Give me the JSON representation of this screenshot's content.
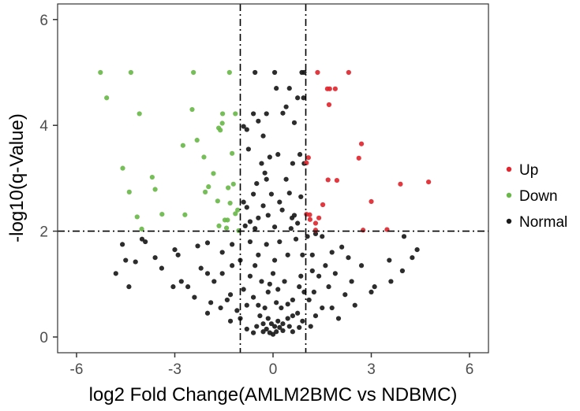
{
  "chart_data": {
    "type": "scatter",
    "title": "",
    "xlabel": "log2 Fold Change(AMLM2BMC vs NDBMC)",
    "ylabel": "-log10(q-Value)",
    "xlim": [
      -6.6,
      6.5
    ],
    "ylim": [
      -0.3,
      6.1
    ],
    "xticks": [
      -6,
      -3,
      0,
      3,
      6
    ],
    "xtick_labels": [
      "-6",
      "-3",
      "0",
      "3",
      "6"
    ],
    "yticks": [
      0,
      2,
      4,
      6
    ],
    "ytick_labels": [
      "0",
      "2",
      "4",
      "6"
    ],
    "grid": false,
    "legend_position": "right",
    "threshold_lines": {
      "vertical": [
        -1,
        1
      ],
      "horizontal": [
        2
      ],
      "style": "dotdash"
    },
    "series": [
      {
        "name": "Up",
        "color": "#e0272f",
        "points": [
          [
            1.36,
            5.0
          ],
          [
            2.31,
            5.0
          ],
          [
            1.66,
            4.69
          ],
          [
            1.73,
            4.69
          ],
          [
            1.9,
            4.69
          ],
          [
            1.71,
            4.39
          ],
          [
            2.7,
            3.65
          ],
          [
            1.08,
            3.39
          ],
          [
            2.62,
            3.38
          ],
          [
            1.02,
            3.29
          ],
          [
            1.68,
            2.97
          ],
          [
            1.95,
            2.96
          ],
          [
            3.89,
            2.89
          ],
          [
            4.75,
            2.93
          ],
          [
            3.0,
            2.56
          ],
          [
            1.52,
            2.5
          ],
          [
            1.02,
            2.32
          ],
          [
            1.12,
            2.31
          ],
          [
            1.13,
            2.22
          ],
          [
            1.4,
            2.25
          ],
          [
            1.3,
            2.15
          ],
          [
            1.3,
            2.02
          ],
          [
            2.75,
            2.02
          ],
          [
            3.48,
            2.03
          ]
        ]
      },
      {
        "name": "Down",
        "color": "#6ab84a",
        "points": [
          [
            -5.27,
            5.0
          ],
          [
            -4.34,
            5.0
          ],
          [
            -2.43,
            5.0
          ],
          [
            -1.33,
            5.0
          ],
          [
            -5.08,
            4.52
          ],
          [
            -4.08,
            4.22
          ],
          [
            -2.47,
            4.3
          ],
          [
            -1.54,
            4.22
          ],
          [
            -1.15,
            4.22
          ],
          [
            -1.55,
            4.04
          ],
          [
            -1.66,
            3.95
          ],
          [
            -1.61,
            3.91
          ],
          [
            -2.32,
            3.72
          ],
          [
            -2.75,
            3.62
          ],
          [
            -2.11,
            3.4
          ],
          [
            -1.25,
            3.47
          ],
          [
            -4.59,
            3.19
          ],
          [
            -1.82,
            3.09
          ],
          [
            -3.69,
            3.02
          ],
          [
            -1.97,
            2.84
          ],
          [
            -1.21,
            2.89
          ],
          [
            -1.37,
            2.82
          ],
          [
            -4.39,
            2.74
          ],
          [
            -3.6,
            2.79
          ],
          [
            -2.07,
            2.74
          ],
          [
            -1.69,
            2.57
          ],
          [
            -1.31,
            2.53
          ],
          [
            -1.08,
            2.4
          ],
          [
            -1.15,
            2.33
          ],
          [
            -3.39,
            2.32
          ],
          [
            -2.69,
            2.31
          ],
          [
            -4.15,
            2.27
          ],
          [
            -1.47,
            2.21
          ],
          [
            -1.39,
            2.21
          ],
          [
            -1.65,
            2.1
          ],
          [
            -1.42,
            2.06
          ],
          [
            -4.01,
            2.04
          ],
          [
            -1.05,
            2.01
          ]
        ]
      },
      {
        "name": "Normal",
        "color": "#1a1a1a",
        "points": [
          [
            -0.55,
            5.0
          ],
          [
            0.05,
            5.0
          ],
          [
            0.95,
            5.0
          ],
          [
            0.88,
            5.0
          ],
          [
            0.1,
            4.7
          ],
          [
            0.5,
            4.7
          ],
          [
            0.75,
            4.52
          ],
          [
            0.93,
            4.52
          ],
          [
            0.4,
            4.35
          ],
          [
            -0.2,
            4.22
          ],
          [
            -0.6,
            4.22
          ],
          [
            0.3,
            4.23
          ],
          [
            -0.45,
            4.08
          ],
          [
            0.65,
            4.05
          ],
          [
            -0.9,
            3.98
          ],
          [
            -0.8,
            3.92
          ],
          [
            -0.3,
            3.8
          ],
          [
            -0.75,
            3.55
          ],
          [
            -0.1,
            3.4
          ],
          [
            0.15,
            3.45
          ],
          [
            0.82,
            3.45
          ],
          [
            -0.35,
            3.28
          ],
          [
            0.95,
            3.28
          ],
          [
            0.6,
            3.28
          ],
          [
            -0.25,
            3.1
          ],
          [
            -0.2,
            2.98
          ],
          [
            0.4,
            2.98
          ],
          [
            -0.5,
            2.9
          ],
          [
            -0.6,
            2.7
          ],
          [
            -0.05,
            2.7
          ],
          [
            0.5,
            2.72
          ],
          [
            0.85,
            2.65
          ],
          [
            -0.9,
            2.55
          ],
          [
            -0.8,
            2.45
          ],
          [
            0.2,
            2.55
          ],
          [
            -0.3,
            2.48
          ],
          [
            0.28,
            2.4
          ],
          [
            0.65,
            2.3
          ],
          [
            0.58,
            2.25
          ],
          [
            -0.45,
            2.25
          ],
          [
            -0.15,
            2.3
          ],
          [
            -0.7,
            2.18
          ],
          [
            0.75,
            2.15
          ],
          [
            -0.85,
            2.1
          ],
          [
            0.05,
            2.08
          ],
          [
            -0.55,
            2.05
          ],
          [
            0.55,
            2.05
          ],
          [
            -4.0,
            1.85
          ],
          [
            -3.9,
            1.8
          ],
          [
            -4.2,
            1.42
          ],
          [
            -3.6,
            1.5
          ],
          [
            -3.0,
            1.65
          ],
          [
            -3.4,
            1.3
          ],
          [
            -3.05,
            0.95
          ],
          [
            -2.8,
            1.05
          ],
          [
            -4.6,
            1.75
          ],
          [
            -4.5,
            1.45
          ],
          [
            -2.9,
            1.55
          ],
          [
            -2.3,
            1.72
          ],
          [
            -2.0,
            1.78
          ],
          [
            -1.55,
            1.6
          ],
          [
            -1.25,
            1.75
          ],
          [
            -2.2,
            1.3
          ],
          [
            -2.0,
            1.2
          ],
          [
            -1.8,
            1.05
          ],
          [
            -1.55,
            1.2
          ],
          [
            -1.25,
            1.35
          ],
          [
            -1.0,
            1.45
          ],
          [
            -1.3,
            0.8
          ],
          [
            -4.8,
            1.2
          ],
          [
            -4.4,
            0.95
          ],
          [
            -2.6,
            0.95
          ],
          [
            -2.4,
            0.75
          ],
          [
            -1.9,
            0.65
          ],
          [
            -1.6,
            0.55
          ],
          [
            -1.4,
            0.7
          ],
          [
            -1.1,
            0.5
          ],
          [
            -2.0,
            0.45
          ],
          [
            -1.3,
            0.3
          ],
          [
            -1.0,
            0.35
          ],
          [
            -0.8,
            0.6
          ],
          [
            -0.9,
            0.9
          ],
          [
            -0.7,
            1.15
          ],
          [
            -0.55,
            1.35
          ],
          [
            -0.4,
            0.4
          ],
          [
            -0.3,
            0.25
          ],
          [
            -0.2,
            0.15
          ],
          [
            -0.1,
            0.08
          ],
          [
            0.0,
            0.05
          ],
          [
            0.1,
            0.1
          ],
          [
            0.2,
            0.18
          ],
          [
            0.3,
            0.25
          ],
          [
            0.45,
            0.35
          ],
          [
            0.6,
            0.4
          ],
          [
            0.75,
            0.45
          ],
          [
            0.9,
            0.3
          ],
          [
            -0.5,
            0.2
          ],
          [
            0.5,
            0.2
          ],
          [
            -0.25,
            0.55
          ],
          [
            0.25,
            0.55
          ],
          [
            -0.6,
            0.75
          ],
          [
            0.6,
            0.7
          ],
          [
            -0.15,
            0.85
          ],
          [
            0.15,
            0.9
          ],
          [
            -0.35,
            1.05
          ],
          [
            0.35,
            1.05
          ],
          [
            0.0,
            1.2
          ],
          [
            -0.45,
            1.55
          ],
          [
            0.45,
            1.55
          ],
          [
            -0.2,
            1.75
          ],
          [
            0.2,
            1.8
          ],
          [
            0.05,
            1.45
          ],
          [
            -0.7,
            1.8
          ],
          [
            0.7,
            1.85
          ],
          [
            0.9,
            1.55
          ],
          [
            0.85,
            1.15
          ],
          [
            0.95,
            0.85
          ],
          [
            0.8,
            0.95
          ],
          [
            -0.15,
            0.35
          ],
          [
            0.15,
            0.3
          ],
          [
            -0.05,
            0.25
          ],
          [
            0.05,
            0.2
          ],
          [
            -0.3,
            0.1
          ],
          [
            0.3,
            0.12
          ],
          [
            -0.6,
            0.08
          ],
          [
            0.6,
            0.1
          ],
          [
            -0.8,
            0.15
          ],
          [
            0.8,
            0.18
          ],
          [
            -0.45,
            0.6
          ],
          [
            0.45,
            0.62
          ],
          [
            -0.1,
            1.0
          ],
          [
            0.1,
            0.65
          ],
          [
            1.2,
            1.55
          ],
          [
            1.3,
            1.95
          ],
          [
            1.5,
            1.9
          ],
          [
            1.6,
            1.35
          ],
          [
            1.8,
            1.6
          ],
          [
            2.1,
            1.7
          ],
          [
            2.3,
            1.5
          ],
          [
            2.4,
            1.05
          ],
          [
            1.9,
            1.2
          ],
          [
            1.7,
            0.95
          ],
          [
            1.25,
            0.85
          ],
          [
            1.5,
            0.55
          ],
          [
            1.1,
            0.7
          ],
          [
            1.3,
            0.4
          ],
          [
            1.15,
            0.2
          ],
          [
            1.8,
            0.55
          ],
          [
            2.2,
            0.8
          ],
          [
            2.5,
            0.6
          ],
          [
            3.0,
            0.85
          ],
          [
            3.6,
            1.05
          ],
          [
            3.55,
            1.45
          ],
          [
            4.0,
            1.9
          ],
          [
            4.4,
            1.65
          ],
          [
            4.25,
            1.5
          ],
          [
            3.95,
            1.25
          ],
          [
            2.0,
            0.35
          ],
          [
            1.2,
            1.25
          ],
          [
            1.4,
            1.15
          ],
          [
            1.05,
            1.9
          ],
          [
            2.7,
            1.35
          ],
          [
            3.1,
            0.95
          ]
        ]
      }
    ]
  },
  "legend": {
    "items": [
      {
        "label": "Up",
        "color": "#e0272f"
      },
      {
        "label": "Down",
        "color": "#6ab84a"
      },
      {
        "label": "Normal",
        "color": "#1a1a1a"
      }
    ]
  }
}
